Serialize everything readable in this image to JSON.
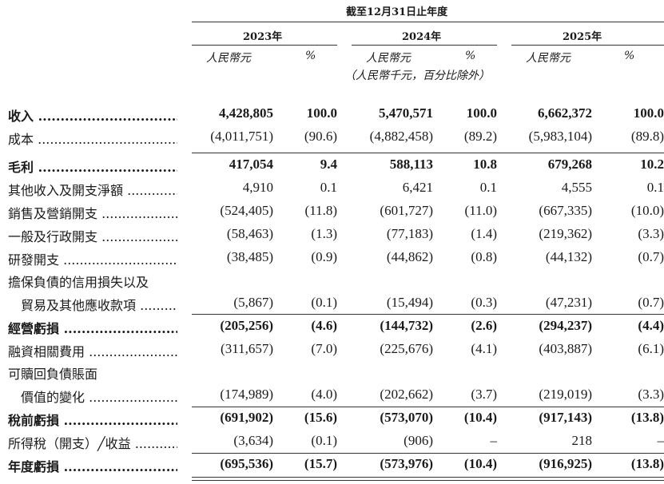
{
  "header": {
    "period_caption": "截至12月31日止年度",
    "years": [
      "2023年",
      "2024年",
      "2025年"
    ],
    "amount_unit": "人民幣元",
    "percent_unit": "%",
    "note": "（人民幣千元，百分比除外）"
  },
  "rows": [
    {
      "label": "收入",
      "bold": true,
      "cells": [
        "4,428,805",
        "100.0",
        "5,470,571",
        "100.0",
        "6,662,372",
        "100.0"
      ]
    },
    {
      "label": "成本",
      "bold": false,
      "cells": [
        "(4,011,751)",
        "(90.6)",
        "(4,882,458)",
        "(89.2)",
        "(5,983,104)",
        "(89.8)"
      ]
    },
    {
      "label": "毛利",
      "bold": true,
      "cells": [
        "417,054",
        "9.4",
        "588,113",
        "10.8",
        "679,268",
        "10.2"
      ]
    },
    {
      "label": "其他收入及開支淨額",
      "bold": false,
      "cells": [
        "4,910",
        "0.1",
        "6,421",
        "0.1",
        "4,555",
        "0.1"
      ]
    },
    {
      "label": "銷售及營銷開支",
      "bold": false,
      "cells": [
        "(524,405)",
        "(11.8)",
        "(601,727)",
        "(11.0)",
        "(667,335)",
        "(10.0)"
      ]
    },
    {
      "label": "一般及行政開支",
      "bold": false,
      "cells": [
        "(58,463)",
        "(1.3)",
        "(77,183)",
        "(1.4)",
        "(219,362)",
        "(3.3)"
      ]
    },
    {
      "label": "研發開支",
      "bold": false,
      "cells": [
        "(38,485)",
        "(0.9)",
        "(44,862)",
        "(0.8)",
        "(44,132)",
        "(0.7)"
      ]
    },
    {
      "label": "擔保負債的信用損失以及",
      "label2": "貿易及其他應收款項",
      "bold": false,
      "cells": [
        "(5,867)",
        "(0.1)",
        "(15,494)",
        "(0.3)",
        "(47,231)",
        "(0.7)"
      ]
    },
    {
      "label": "經營虧損",
      "bold": true,
      "cells": [
        "(205,256)",
        "(4.6)",
        "(144,732)",
        "(2.6)",
        "(294,237)",
        "(4.4)"
      ]
    },
    {
      "label": "融資相關費用",
      "bold": false,
      "cells": [
        "(311,657)",
        "(7.0)",
        "(225,676)",
        "(4.1)",
        "(403,887)",
        "(6.1)"
      ]
    },
    {
      "label": "可贖回負債賬面",
      "label2": "價值的變化",
      "bold": false,
      "cells": [
        "(174,989)",
        "(4.0)",
        "(202,662)",
        "(3.7)",
        "(219,019)",
        "(3.3)"
      ]
    },
    {
      "label": "稅前虧損",
      "bold": true,
      "cells": [
        "(691,902)",
        "(15.6)",
        "(573,070)",
        "(10.4)",
        "(917,143)",
        "(13.8)"
      ]
    },
    {
      "label": "所得稅（開支）╱收益",
      "bold": false,
      "cells": [
        "(3,634)",
        "(0.1)",
        "(906)",
        "–",
        "218",
        "–"
      ]
    },
    {
      "label": "年度虧損",
      "bold": true,
      "cells": [
        "(695,536)",
        "(15.7)",
        "(573,976)",
        "(10.4)",
        "(916,925)",
        "(13.8)"
      ]
    }
  ]
}
